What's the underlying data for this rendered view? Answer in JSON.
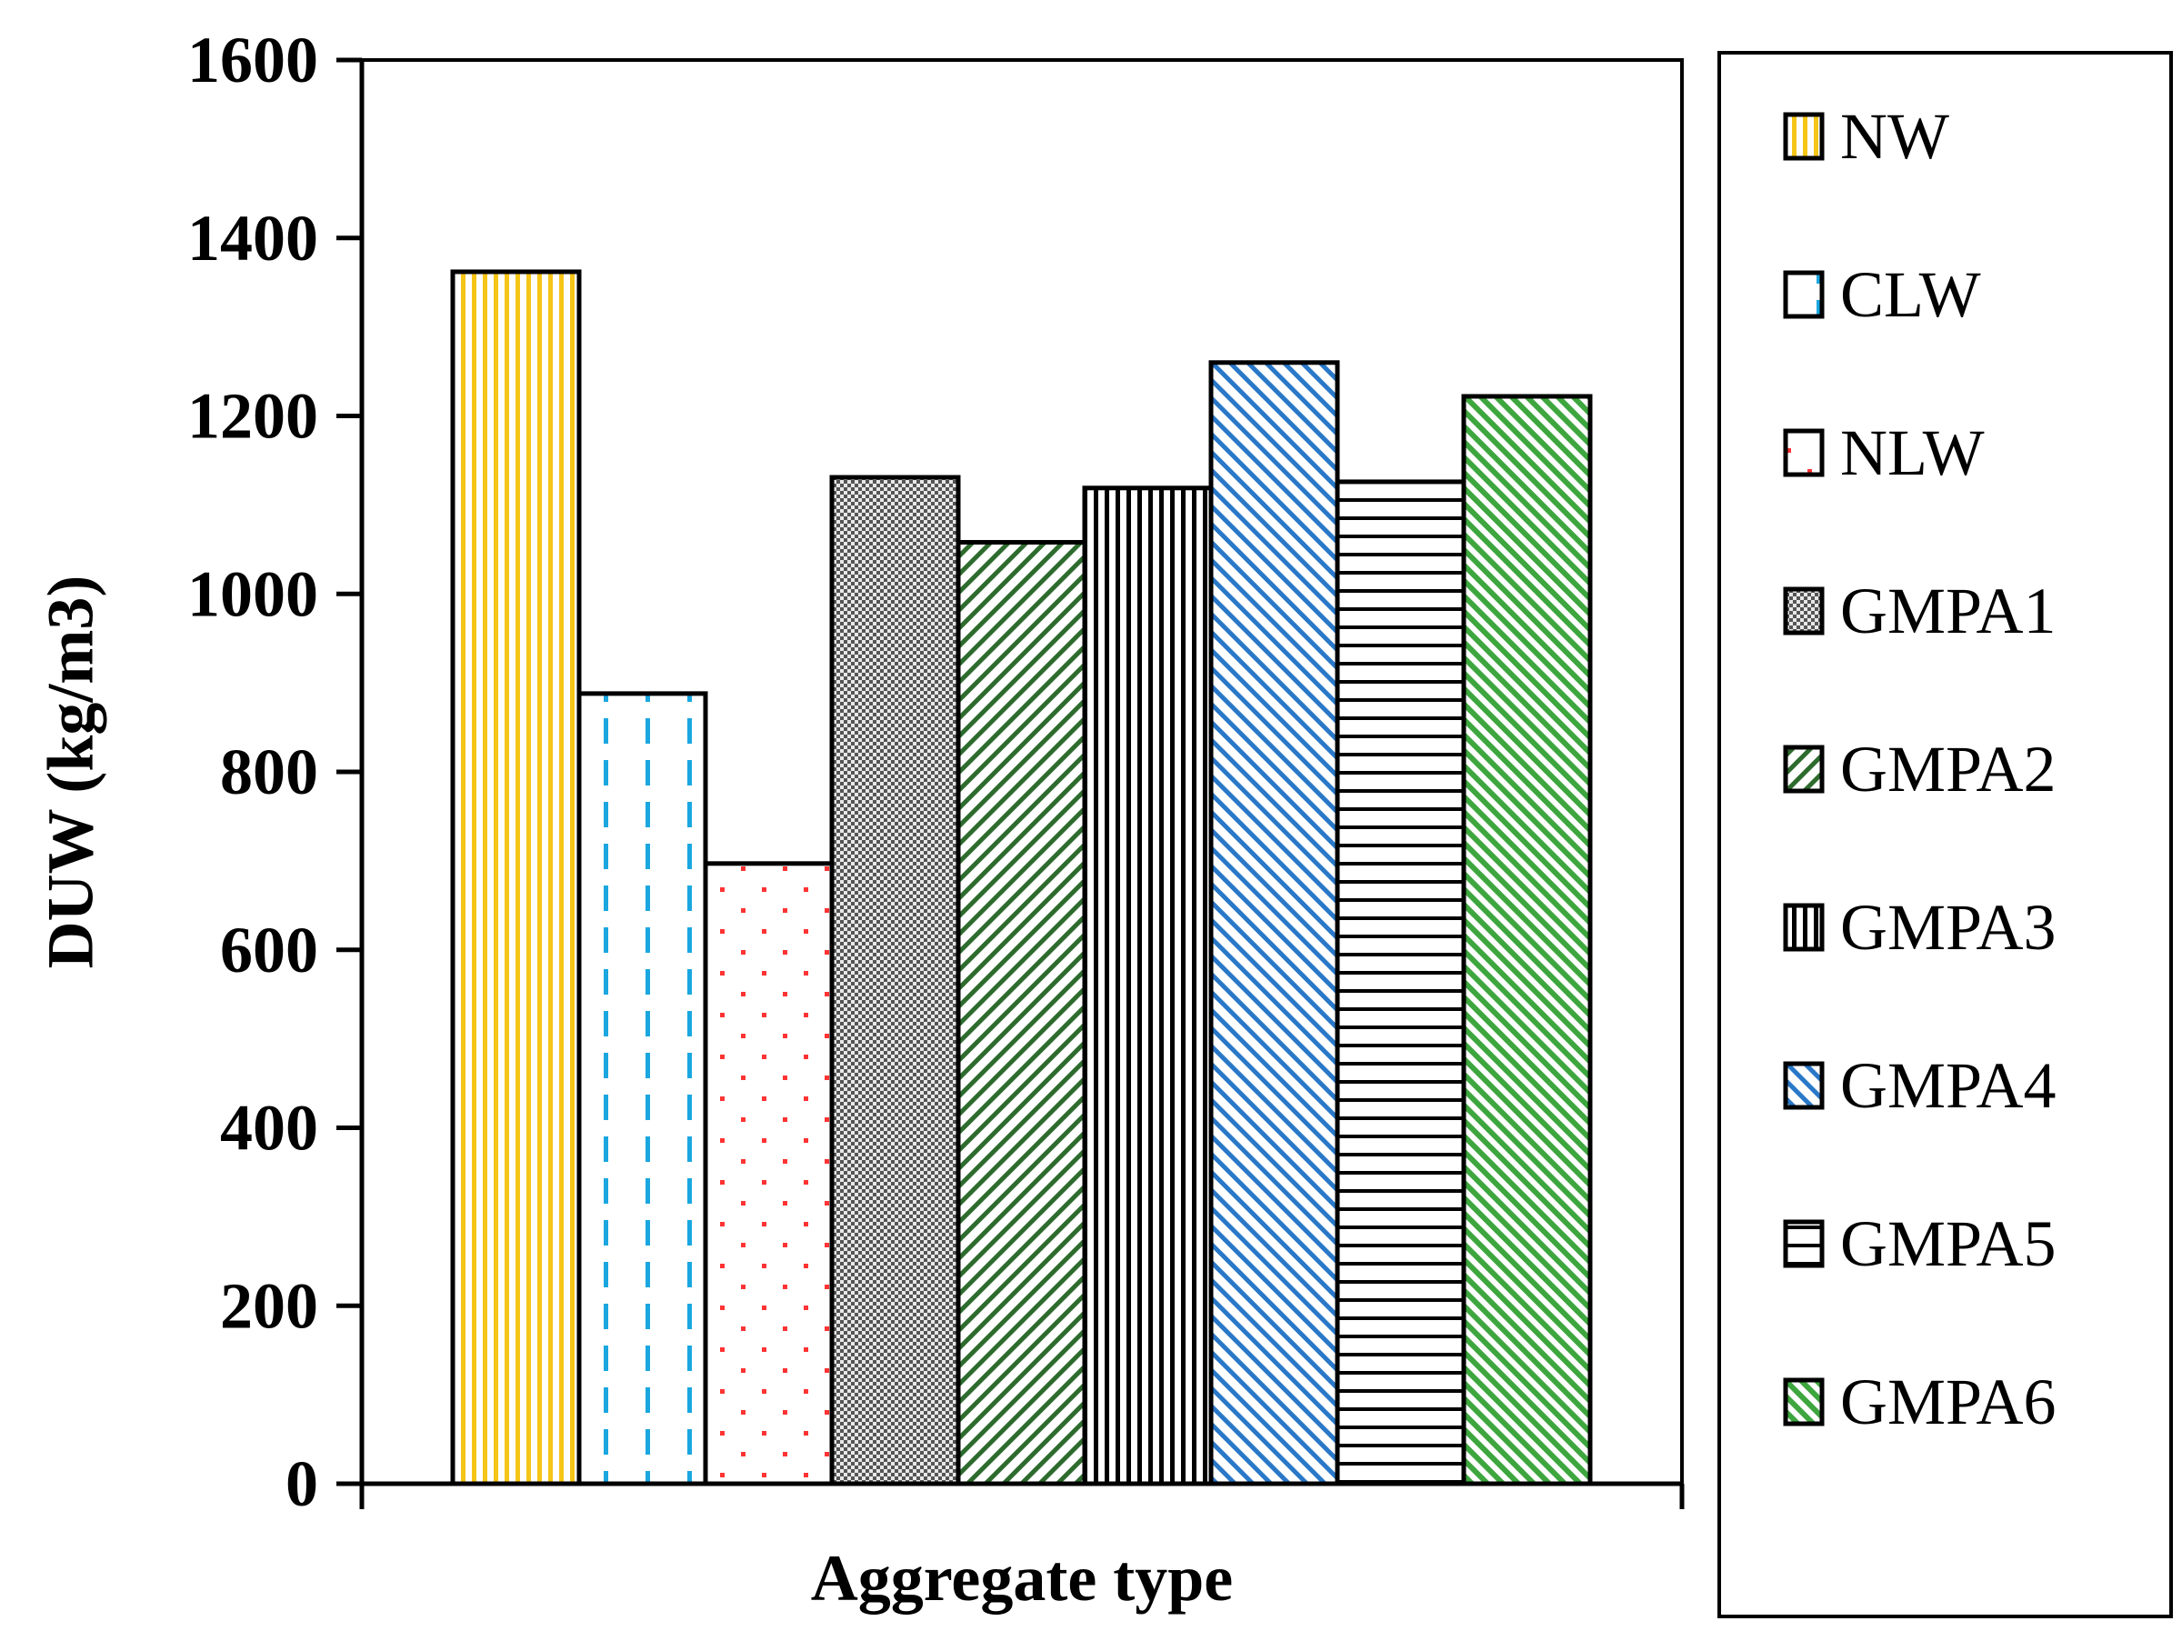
{
  "chart_data": {
    "type": "bar",
    "title": "",
    "xlabel": "Aggregate type",
    "ylabel": "DUW (kg/m3)",
    "ylim": [
      0,
      1600
    ],
    "yticks": [
      "0",
      "200",
      "400",
      "600",
      "800",
      "1000",
      "1200",
      "1400",
      "1600"
    ],
    "grid": false,
    "legend_position": "right",
    "series": [
      {
        "name": "NW",
        "value": 1362,
        "color": "#f5c518",
        "pattern": "vertical-lines"
      },
      {
        "name": "CLW",
        "value": 888,
        "color": "#1aa7e0",
        "pattern": "vertical-dashes"
      },
      {
        "name": "NLW",
        "value": 697,
        "color": "#ff3333",
        "pattern": "dots"
      },
      {
        "name": "GMPA1",
        "value": 1131,
        "color": "#555555",
        "pattern": "checker"
      },
      {
        "name": "GMPA2",
        "value": 1058,
        "color": "#2e6b2e",
        "pattern": "diagonal-down"
      },
      {
        "name": "GMPA3",
        "value": 1119,
        "color": "#000000",
        "pattern": "vertical-lines"
      },
      {
        "name": "GMPA4",
        "value": 1260,
        "color": "#2a78c8",
        "pattern": "diagonal-up"
      },
      {
        "name": "GMPA5",
        "value": 1126,
        "color": "#000000",
        "pattern": "horizontal-lines"
      },
      {
        "name": "GMPA6",
        "value": 1222,
        "color": "#3ea63e",
        "pattern": "diagonal-up-dense"
      }
    ]
  }
}
